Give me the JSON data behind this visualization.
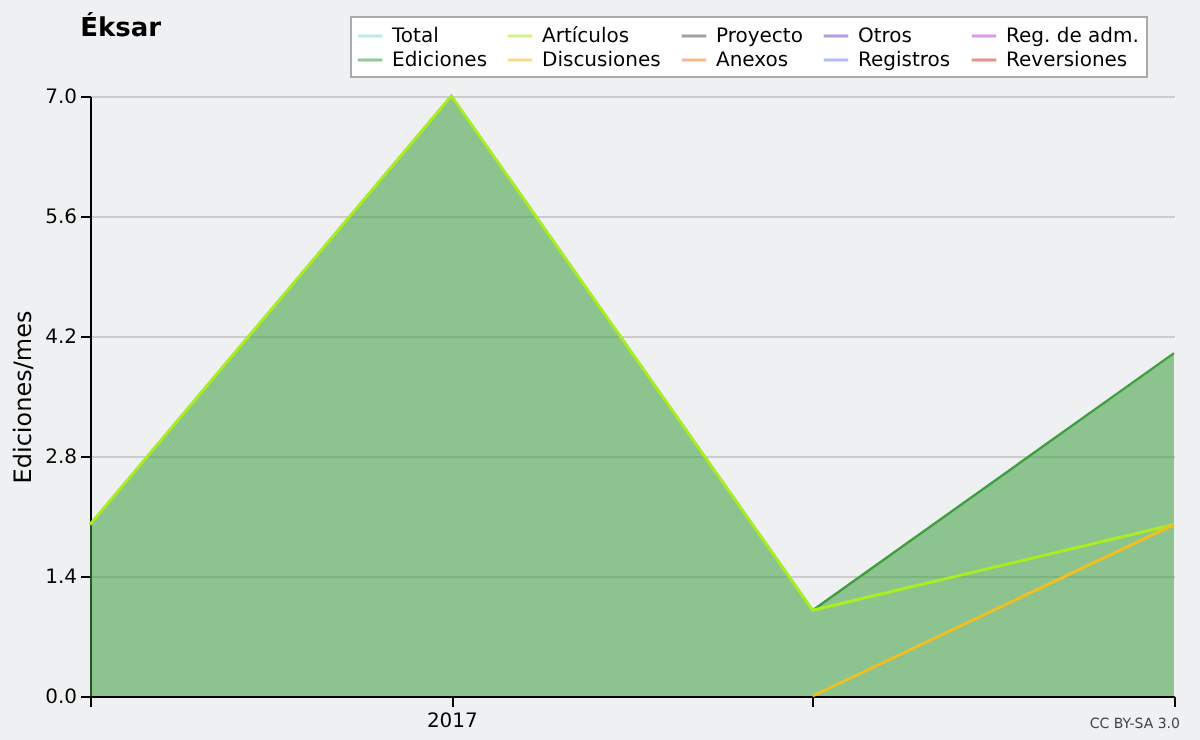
{
  "chart_data": {
    "type": "line",
    "title": "Éksar",
    "ylabel": "Ediciones/mes",
    "categories": [
      null,
      "2017",
      null,
      null
    ],
    "series": [
      {
        "name": "Total",
        "color": "#88d8d8",
        "values": [
          null,
          null,
          null,
          null
        ]
      },
      {
        "name": "Ediciones",
        "color": "#3c9e3c",
        "type": "area",
        "values": [
          2,
          7,
          1,
          4
        ]
      },
      {
        "name": "Artículos",
        "color": "#aaee22",
        "values": [
          2,
          7,
          1,
          2
        ]
      },
      {
        "name": "Discusiones",
        "color": "#f0c020",
        "values": [
          null,
          null,
          0,
          2
        ]
      },
      {
        "name": "Proyecto",
        "color": "#555555",
        "values": [
          null,
          null,
          null,
          null
        ]
      },
      {
        "name": "Anexos",
        "color": "#f08040",
        "values": [
          null,
          null,
          null,
          null
        ]
      },
      {
        "name": "Otros",
        "color": "#7744cc",
        "values": [
          null,
          null,
          null,
          null
        ]
      },
      {
        "name": "Registros",
        "color": "#7788ee",
        "values": [
          null,
          null,
          null,
          null
        ]
      },
      {
        "name": "Reg. de adm.",
        "color": "#bb44dd",
        "values": [
          null,
          null,
          null,
          null
        ]
      },
      {
        "name": "Reversiones",
        "color": "#dd3333",
        "values": [
          null,
          null,
          null,
          null
        ]
      }
    ],
    "ylim": [
      0,
      7
    ],
    "yticks": [
      {
        "value": 0,
        "label": "0.0"
      },
      {
        "value": 1.4,
        "label": "1.4"
      },
      {
        "value": 2.8,
        "label": "2.8"
      },
      {
        "value": 4.2,
        "label": "4.2"
      },
      {
        "value": 5.6,
        "label": "5.6"
      },
      {
        "value": 7,
        "label": "7.0"
      }
    ],
    "grid": "y",
    "legend": "top right",
    "annotations": [
      "CC BY-SA 3.0"
    ]
  }
}
